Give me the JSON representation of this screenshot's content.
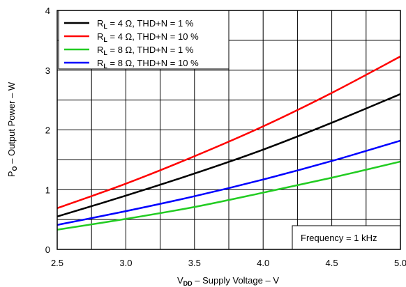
{
  "chart_data": {
    "type": "line",
    "xlabel_main": "V",
    "xlabel_sub": "DD",
    "xlabel_rest": " – Supply Voltage – V",
    "ylabel_main": "P",
    "ylabel_sub": "O",
    "ylabel_rest": " – Output Power – W",
    "xlim": [
      2.5,
      5.0
    ],
    "ylim": [
      0,
      4
    ],
    "xticks": [
      "2.5",
      "3.0",
      "3.5",
      "4.0",
      "4.5",
      "5.0"
    ],
    "yticks": [
      "0",
      "1",
      "2",
      "3",
      "4"
    ],
    "grid": true,
    "legend_position": "top-left",
    "annotation": "Frequency = 1 kHz",
    "series": [
      {
        "name": "RL = 4 Ω, THD+N = 1 %",
        "label_pre": "R",
        "label_sub": "L",
        "label_post": " = 4 Ω, THD+N = 1 %",
        "color": "#000000",
        "x": [
          2.5,
          3.0,
          3.5,
          4.0,
          4.5,
          5.0
        ],
        "y": [
          0.55,
          0.9,
          1.27,
          1.67,
          2.12,
          2.6
        ]
      },
      {
        "name": "RL = 4 Ω, THD+N = 10 %",
        "label_pre": "R",
        "label_sub": "L",
        "label_post": " = 4 Ω, THD+N = 10 %",
        "color": "#ff0000",
        "x": [
          2.5,
          3.0,
          3.5,
          4.0,
          4.5,
          5.0
        ],
        "y": [
          0.69,
          1.1,
          1.56,
          2.06,
          2.62,
          3.23
        ]
      },
      {
        "name": "RL = 8 Ω, THD+N = 1 %",
        "label_pre": "R",
        "label_sub": "L",
        "label_post": " = 8 Ω, THD+N = 1 %",
        "color": "#22cc22",
        "x": [
          2.5,
          3.0,
          3.5,
          4.0,
          4.5,
          5.0
        ],
        "y": [
          0.33,
          0.51,
          0.71,
          0.95,
          1.2,
          1.47
        ]
      },
      {
        "name": "RL = 8 Ω, THD+N = 10 %",
        "label_pre": "R",
        "label_sub": "L",
        "label_post": " = 8 Ω, THD+N = 10 %",
        "color": "#0000ff",
        "x": [
          2.5,
          3.0,
          3.5,
          4.0,
          4.5,
          5.0
        ],
        "y": [
          0.41,
          0.64,
          0.89,
          1.17,
          1.48,
          1.82
        ]
      }
    ]
  }
}
